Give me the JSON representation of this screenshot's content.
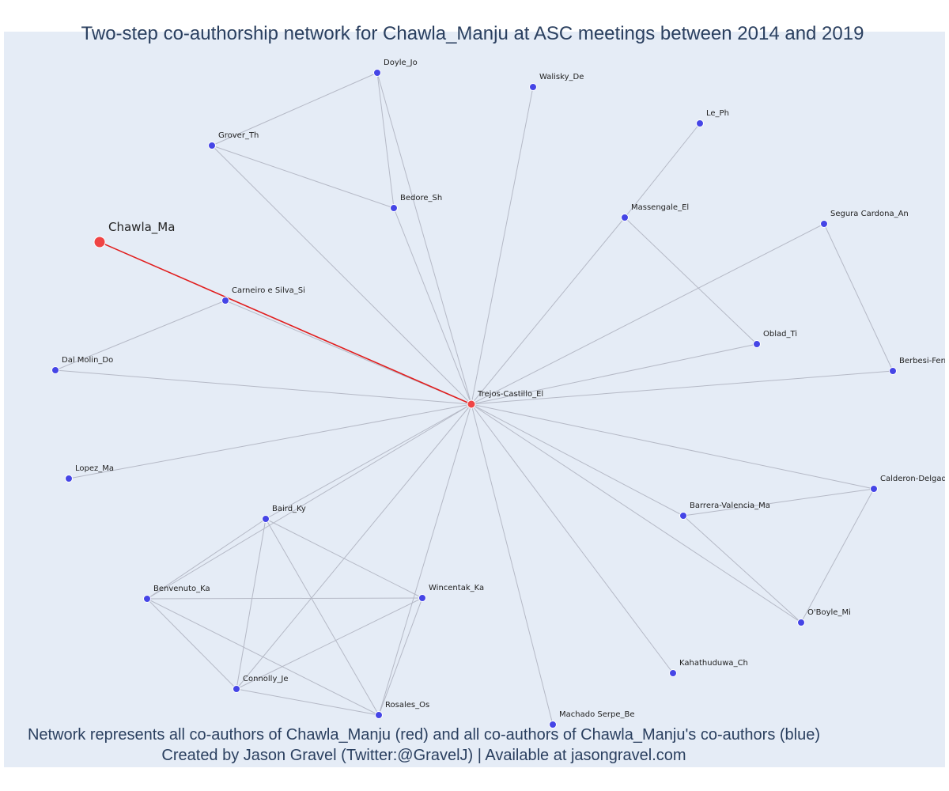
{
  "title": "Two-step co-authorship network for Chawla_Manju at ASC meetings between 2014 and 2019",
  "caption": {
    "line1": "Network represents all co-authors of Chawla_Manju (red) and all co-authors of Chawla_Manju's co-authors (blue)",
    "line2": "Created by Jason Gravel (Twitter:@GravelJ) | Available at jasongravel.com"
  },
  "colors": {
    "background": "#e5ecf6",
    "focus_node": "#ef4444",
    "coauthor_node": "#4545e6",
    "highlight_edge": "#e11d1d",
    "edge": "#b5b9c6",
    "text": "#2a3f5f"
  },
  "nodes": [
    {
      "id": "Chawla_Ma",
      "label": "Chawla_Ma",
      "role": "focus"
    },
    {
      "id": "Trejos-Castillo_El",
      "label": "Trejos-Castillo_El",
      "role": "coauthor"
    },
    {
      "id": "Doyle_Jo",
      "label": "Doyle_Jo",
      "role": "second"
    },
    {
      "id": "Walisky_De",
      "label": "Walisky_De",
      "role": "second"
    },
    {
      "id": "Le_Ph",
      "label": "Le_Ph",
      "role": "second"
    },
    {
      "id": "Grover_Th",
      "label": "Grover_Th",
      "role": "second"
    },
    {
      "id": "Bedore_Sh",
      "label": "Bedore_Sh",
      "role": "second"
    },
    {
      "id": "Massengale_El",
      "label": "Massengale_El",
      "role": "second"
    },
    {
      "id": "Segura Cardona_An",
      "label": "Segura Cardona_An",
      "role": "second"
    },
    {
      "id": "Carneiro e Silva_Si",
      "label": "Carneiro e Silva_Si",
      "role": "second"
    },
    {
      "id": "Oblad_Ti",
      "label": "Oblad_Ti",
      "role": "second"
    },
    {
      "id": "Dal Molin_Do",
      "label": "Dal Molin_Do",
      "role": "second"
    },
    {
      "id": "Berbesi-Fern",
      "label": "Berbesi-Fern",
      "role": "second"
    },
    {
      "id": "Lopez_Ma",
      "label": "Lopez_Ma",
      "role": "second"
    },
    {
      "id": "Calderon-Delgado",
      "label": "Calderon-Delgado",
      "role": "second"
    },
    {
      "id": "Baird_Ky",
      "label": "Baird_Ky",
      "role": "second"
    },
    {
      "id": "Barrera-Valencia_Ma",
      "label": "Barrera-Valencia_Ma",
      "role": "second"
    },
    {
      "id": "Benvenuto_Ka",
      "label": "Benvenuto_Ka",
      "role": "second"
    },
    {
      "id": "Wincentak_Ka",
      "label": "Wincentak_Ka",
      "role": "second"
    },
    {
      "id": "O'Boyle_Mi",
      "label": "O'Boyle_Mi",
      "role": "second"
    },
    {
      "id": "Kahathuduwa_Ch",
      "label": "Kahathuduwa_Ch",
      "role": "second"
    },
    {
      "id": "Connolly_Je",
      "label": "Connolly_Je",
      "role": "second"
    },
    {
      "id": "Rosales_Os",
      "label": "Rosales_Os",
      "role": "second"
    },
    {
      "id": "Machado Serpe_Be",
      "label": "Machado Serpe_Be",
      "role": "second"
    }
  ],
  "edges": [
    {
      "source": "Chawla_Ma",
      "target": "Trejos-Castillo_El",
      "highlight": true
    },
    {
      "source": "Trejos-Castillo_El",
      "target": "Doyle_Jo"
    },
    {
      "source": "Trejos-Castillo_El",
      "target": "Walisky_De"
    },
    {
      "source": "Trejos-Castillo_El",
      "target": "Grover_Th"
    },
    {
      "source": "Trejos-Castillo_El",
      "target": "Bedore_Sh"
    },
    {
      "source": "Trejos-Castillo_El",
      "target": "Massengale_El"
    },
    {
      "source": "Trejos-Castillo_El",
      "target": "Segura Cardona_An"
    },
    {
      "source": "Trejos-Castillo_El",
      "target": "Carneiro e Silva_Si"
    },
    {
      "source": "Trejos-Castillo_El",
      "target": "Oblad_Ti"
    },
    {
      "source": "Trejos-Castillo_El",
      "target": "Dal Molin_Do"
    },
    {
      "source": "Trejos-Castillo_El",
      "target": "Berbesi-Fern"
    },
    {
      "source": "Trejos-Castillo_El",
      "target": "Lopez_Ma"
    },
    {
      "source": "Trejos-Castillo_El",
      "target": "Calderon-Delgado"
    },
    {
      "source": "Trejos-Castillo_El",
      "target": "Baird_Ky"
    },
    {
      "source": "Trejos-Castillo_El",
      "target": "Barrera-Valencia_Ma"
    },
    {
      "source": "Trejos-Castillo_El",
      "target": "Benvenuto_Ka"
    },
    {
      "source": "Trejos-Castillo_El",
      "target": "O'Boyle_Mi"
    },
    {
      "source": "Trejos-Castillo_El",
      "target": "Kahathuduwa_Ch"
    },
    {
      "source": "Trejos-Castillo_El",
      "target": "Connolly_Je"
    },
    {
      "source": "Trejos-Castillo_El",
      "target": "Rosales_Os"
    },
    {
      "source": "Trejos-Castillo_El",
      "target": "Machado Serpe_Be"
    },
    {
      "source": "Doyle_Jo",
      "target": "Grover_Th"
    },
    {
      "source": "Doyle_Jo",
      "target": "Bedore_Sh"
    },
    {
      "source": "Grover_Th",
      "target": "Bedore_Sh"
    },
    {
      "source": "Le_Ph",
      "target": "Massengale_El"
    },
    {
      "source": "Massengale_El",
      "target": "Oblad_Ti"
    },
    {
      "source": "Carneiro e Silva_Si",
      "target": "Dal Molin_Do"
    },
    {
      "source": "Segura Cardona_An",
      "target": "Berbesi-Fern"
    },
    {
      "source": "Calderon-Delgado",
      "target": "Barrera-Valencia_Ma"
    },
    {
      "source": "Calderon-Delgado",
      "target": "O'Boyle_Mi"
    },
    {
      "source": "Barrera-Valencia_Ma",
      "target": "O'Boyle_Mi"
    },
    {
      "source": "Baird_Ky",
      "target": "Benvenuto_Ka"
    },
    {
      "source": "Baird_Ky",
      "target": "Wincentak_Ka"
    },
    {
      "source": "Baird_Ky",
      "target": "Connolly_Je"
    },
    {
      "source": "Baird_Ky",
      "target": "Rosales_Os"
    },
    {
      "source": "Benvenuto_Ka",
      "target": "Wincentak_Ka"
    },
    {
      "source": "Benvenuto_Ka",
      "target": "Connolly_Je"
    },
    {
      "source": "Benvenuto_Ka",
      "target": "Rosales_Os"
    },
    {
      "source": "Wincentak_Ka",
      "target": "Connolly_Je"
    },
    {
      "source": "Wincentak_Ka",
      "target": "Rosales_Os"
    },
    {
      "source": "Connolly_Je",
      "target": "Rosales_Os"
    }
  ]
}
